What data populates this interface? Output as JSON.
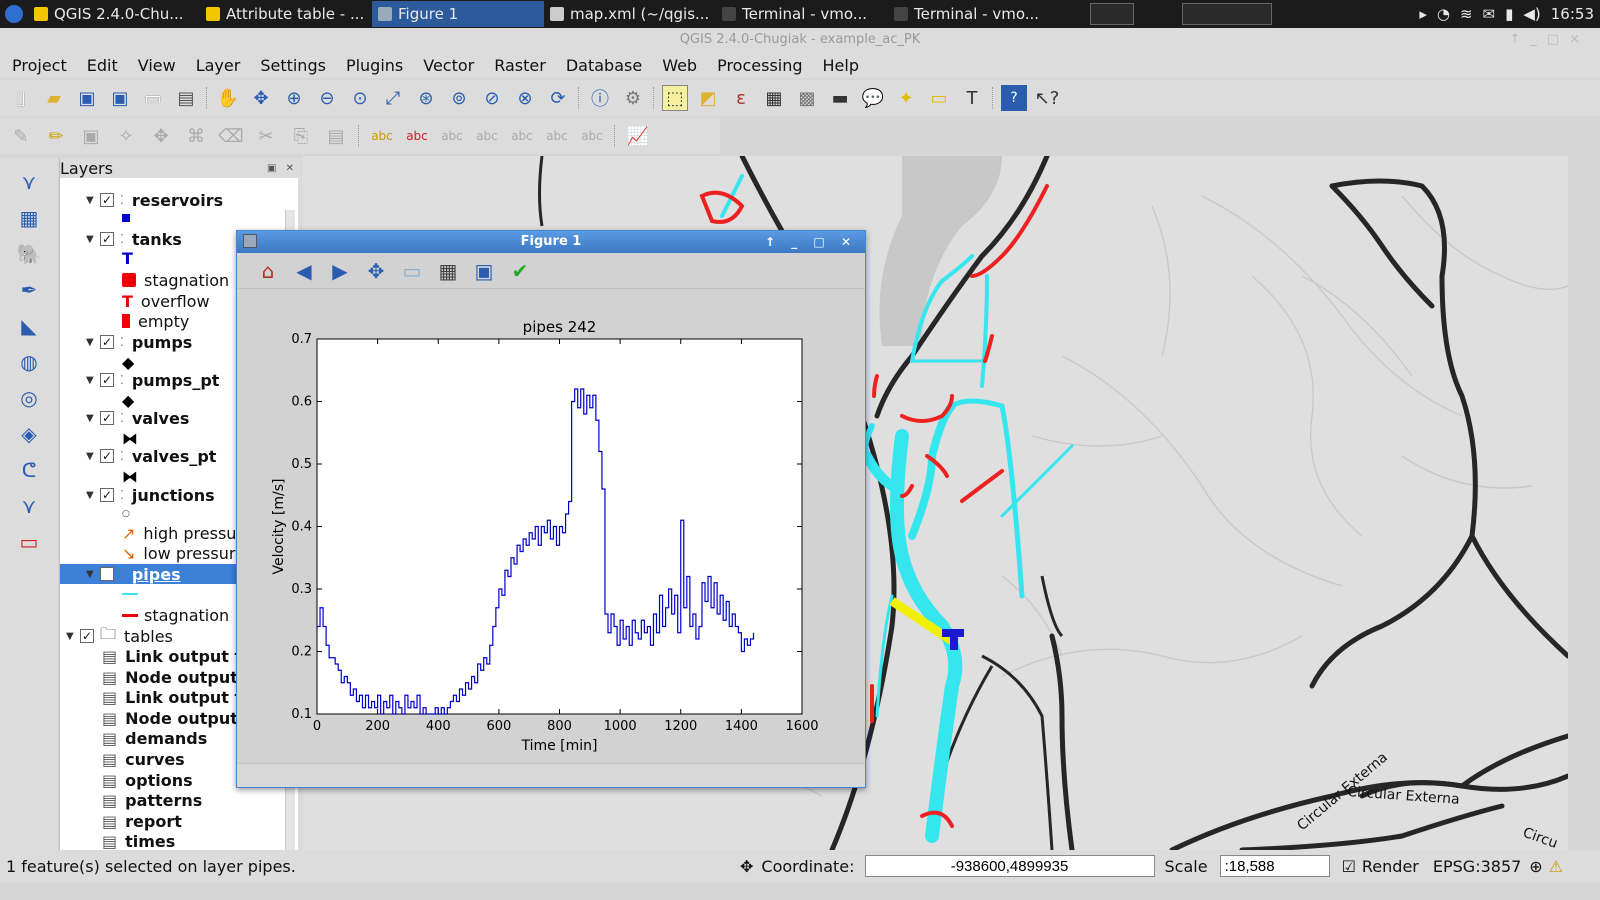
{
  "taskbar": {
    "tasks": [
      {
        "label": "QGIS 2.4.0-Chu...",
        "active": false,
        "color": "#f3c600"
      },
      {
        "label": "Attribute table - ...",
        "active": false,
        "color": "#f3c600"
      },
      {
        "label": "Figure 1",
        "active": true,
        "color": "#9ab"
      },
      {
        "label": "map.xml (~/qgis...",
        "active": false,
        "color": "#ccc"
      },
      {
        "label": "Terminal - vmo...",
        "active": false,
        "color": "#444"
      },
      {
        "label": "Terminal - vmo...",
        "active": false,
        "color": "#444"
      }
    ],
    "clock": "16:53"
  },
  "window": {
    "title": "QGIS 2.4.0-Chugiak - example_ac_PK"
  },
  "menu": [
    "Project",
    "Edit",
    "View",
    "Layer",
    "Settings",
    "Plugins",
    "Vector",
    "Raster",
    "Database",
    "Web",
    "Processing",
    "Help"
  ],
  "layers_panel": {
    "title": "Layers",
    "items": [
      {
        "label": "reservoirs",
        "kind": "layer",
        "bold": true,
        "top": 32
      },
      {
        "label": "tanks",
        "kind": "layer",
        "bold": true,
        "top": 71
      },
      {
        "label": "stagnation",
        "kind": "legend",
        "top": 112
      },
      {
        "label": "overflow",
        "kind": "legend",
        "top": 133
      },
      {
        "label": "empty",
        "kind": "legend",
        "top": 153
      },
      {
        "label": "pumps",
        "kind": "layer",
        "bold": true,
        "top": 174
      },
      {
        "label": "pumps_pt",
        "kind": "layer",
        "bold": true,
        "top": 212
      },
      {
        "label": "valves",
        "kind": "layer",
        "bold": true,
        "top": 250
      },
      {
        "label": "valves_pt",
        "kind": "layer",
        "bold": true,
        "top": 288
      },
      {
        "label": "junctions",
        "kind": "layer",
        "bold": true,
        "top": 327
      },
      {
        "label": "high pressure",
        "kind": "legend",
        "top": 365
      },
      {
        "label": "low pressure",
        "kind": "legend",
        "top": 385
      },
      {
        "label": "pipes",
        "kind": "layer",
        "bold": true,
        "selected": true,
        "top": 406
      },
      {
        "label": "stagnation",
        "kind": "legend",
        "top": 447
      },
      {
        "label": "tables",
        "kind": "group",
        "top": 468
      },
      {
        "label": "Link output t",
        "kind": "table",
        "top": 488
      },
      {
        "label": "Node output",
        "kind": "table",
        "top": 509
      },
      {
        "label": "Link output t",
        "kind": "table",
        "top": 529
      },
      {
        "label": "Node output",
        "kind": "table",
        "top": 550
      },
      {
        "label": "demands",
        "kind": "table",
        "top": 570
      },
      {
        "label": "curves",
        "kind": "table",
        "top": 591
      },
      {
        "label": "options",
        "kind": "table",
        "top": 612
      },
      {
        "label": "patterns",
        "kind": "table",
        "top": 632
      },
      {
        "label": "report",
        "kind": "table",
        "top": 653
      },
      {
        "label": "times",
        "kind": "table",
        "top": 673
      }
    ]
  },
  "status": {
    "message": "1 feature(s) selected on layer pipes.",
    "coordinate_label": "Coordinate:",
    "coordinate": "-938600,4899935",
    "scale_label": "Scale",
    "scale": ":18,588",
    "render_label": "Render",
    "crs": "EPSG:3857"
  },
  "map_labels": {
    "road1": "Circular Externa",
    "road2": "Circular Externa",
    "road3": "Circu"
  },
  "figure": {
    "title": "Figure 1"
  },
  "chart_data": {
    "type": "line",
    "title": "pipes 242",
    "xlabel": "Time [min]",
    "ylabel": "Velocity [m/s]",
    "xlim": [
      0,
      1600
    ],
    "ylim": [
      0.1,
      0.7
    ],
    "xticks": [
      0,
      200,
      400,
      600,
      800,
      1000,
      1200,
      1400,
      1600
    ],
    "yticks": [
      0.1,
      0.2,
      0.3,
      0.4,
      0.5,
      0.6,
      0.7
    ],
    "grid": false,
    "color": "#0000cc",
    "x": [
      0,
      10,
      20,
      30,
      40,
      50,
      60,
      70,
      80,
      90,
      100,
      110,
      120,
      130,
      140,
      150,
      160,
      170,
      180,
      190,
      200,
      210,
      220,
      230,
      240,
      250,
      260,
      270,
      280,
      290,
      300,
      310,
      320,
      330,
      340,
      350,
      360,
      370,
      380,
      390,
      400,
      410,
      420,
      430,
      440,
      450,
      460,
      470,
      480,
      490,
      500,
      510,
      520,
      530,
      540,
      550,
      560,
      570,
      580,
      590,
      600,
      610,
      620,
      630,
      640,
      650,
      660,
      670,
      680,
      690,
      700,
      710,
      720,
      730,
      740,
      750,
      760,
      770,
      780,
      790,
      800,
      810,
      820,
      830,
      840,
      850,
      860,
      870,
      880,
      890,
      900,
      910,
      920,
      930,
      940,
      950,
      960,
      970,
      980,
      990,
      1000,
      1010,
      1020,
      1030,
      1040,
      1050,
      1060,
      1070,
      1080,
      1090,
      1100,
      1110,
      1120,
      1130,
      1140,
      1150,
      1160,
      1170,
      1180,
      1190,
      1200,
      1210,
      1220,
      1230,
      1240,
      1250,
      1260,
      1270,
      1280,
      1290,
      1300,
      1310,
      1320,
      1330,
      1340,
      1350,
      1360,
      1370,
      1380,
      1390,
      1400,
      1410,
      1420,
      1430,
      1440
    ],
    "y": [
      0.24,
      0.27,
      0.24,
      0.21,
      0.19,
      0.19,
      0.18,
      0.17,
      0.15,
      0.16,
      0.15,
      0.13,
      0.14,
      0.12,
      0.13,
      0.11,
      0.13,
      0.11,
      0.12,
      0.11,
      0.13,
      0.1,
      0.12,
      0.11,
      0.13,
      0.1,
      0.12,
      0.11,
      0.1,
      0.13,
      0.11,
      0.12,
      0.11,
      0.13,
      0.1,
      0.11,
      0.1,
      0.1,
      0.1,
      0.11,
      0.1,
      0.11,
      0.1,
      0.11,
      0.12,
      0.13,
      0.12,
      0.14,
      0.13,
      0.15,
      0.14,
      0.16,
      0.15,
      0.18,
      0.17,
      0.19,
      0.18,
      0.21,
      0.24,
      0.27,
      0.3,
      0.29,
      0.33,
      0.32,
      0.35,
      0.34,
      0.37,
      0.36,
      0.38,
      0.37,
      0.39,
      0.38,
      0.4,
      0.37,
      0.4,
      0.39,
      0.41,
      0.38,
      0.4,
      0.37,
      0.4,
      0.39,
      0.42,
      0.44,
      0.6,
      0.62,
      0.59,
      0.62,
      0.58,
      0.61,
      0.59,
      0.61,
      0.57,
      0.52,
      0.46,
      0.26,
      0.23,
      0.26,
      0.24,
      0.21,
      0.25,
      0.22,
      0.24,
      0.21,
      0.25,
      0.23,
      0.22,
      0.25,
      0.23,
      0.24,
      0.21,
      0.26,
      0.23,
      0.29,
      0.24,
      0.27,
      0.3,
      0.26,
      0.29,
      0.23,
      0.41,
      0.27,
      0.32,
      0.24,
      0.26,
      0.22,
      0.24,
      0.31,
      0.28,
      0.32,
      0.27,
      0.31,
      0.26,
      0.29,
      0.25,
      0.28,
      0.24,
      0.26,
      0.24,
      0.23,
      0.2,
      0.22,
      0.21,
      0.22,
      0.23
    ]
  }
}
